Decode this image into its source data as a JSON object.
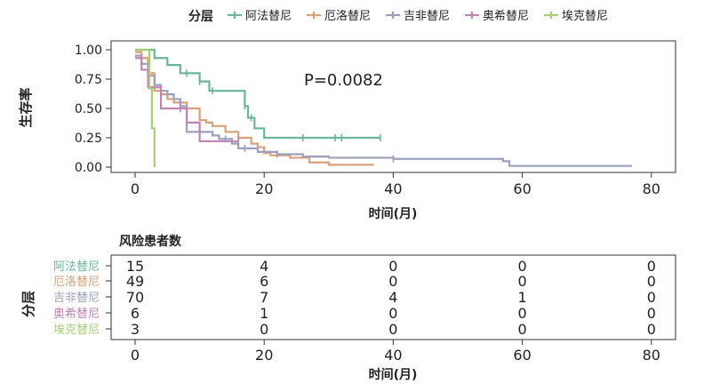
{
  "legend": {
    "title": "分层",
    "position": "top",
    "items": [
      {
        "name": "阿法替尼",
        "color": "#6BB59A"
      },
      {
        "name": "厄洛替尼",
        "color": "#D9A07B"
      },
      {
        "name": "吉非替尼",
        "color": "#9AA0BE"
      },
      {
        "name": "奥希替尼",
        "color": "#C184B4"
      },
      {
        "name": "埃克替尼",
        "color": "#A6CF7A"
      }
    ]
  },
  "chart_data": [
    {
      "type": "line",
      "subtype": "kaplan-meier",
      "xlabel": "时间(月)",
      "ylabel": "生存率",
      "xlim": [
        -3,
        80
      ],
      "ylim": [
        0,
        1
      ],
      "xticks": [
        0,
        20,
        40,
        60,
        80
      ],
      "yticks": [
        0.0,
        0.25,
        0.5,
        0.75,
        1.0
      ],
      "ytick_labels": [
        "0.00",
        "0.25",
        "0.50",
        "0.75",
        "1.00"
      ],
      "annotation": "P=0.0082",
      "grid": false,
      "series": [
        {
          "name": "阿法替尼",
          "color": "#6BB59A",
          "steps": [
            [
              0,
              1.0
            ],
            [
              3,
              0.93
            ],
            [
              5,
              0.87
            ],
            [
              7,
              0.8
            ],
            [
              10,
              0.73
            ],
            [
              11.5,
              0.65
            ],
            [
              17,
              0.52
            ],
            [
              17.5,
              0.42
            ],
            [
              18.5,
              0.33
            ],
            [
              20,
              0.25
            ],
            [
              38,
              0.25
            ]
          ],
          "censor": [
            8,
            10,
            12,
            17,
            18,
            26,
            31,
            32,
            38
          ]
        },
        {
          "name": "厄洛替尼",
          "color": "#D9A07B",
          "steps": [
            [
              0,
              0.98
            ],
            [
              1,
              0.93
            ],
            [
              2,
              0.8
            ],
            [
              3,
              0.65
            ],
            [
              4,
              0.62
            ],
            [
              5,
              0.58
            ],
            [
              6,
              0.55
            ],
            [
              8,
              0.5
            ],
            [
              10,
              0.4
            ],
            [
              11,
              0.38
            ],
            [
              12,
              0.35
            ],
            [
              14,
              0.3
            ],
            [
              16,
              0.25
            ],
            [
              18,
              0.2
            ],
            [
              19,
              0.17
            ],
            [
              20,
              0.12
            ],
            [
              21,
              0.1
            ],
            [
              24,
              0.08
            ],
            [
              27,
              0.04
            ],
            [
              30,
              0.02
            ],
            [
              37,
              0.02
            ]
          ],
          "censor": []
        },
        {
          "name": "吉非替尼",
          "color": "#9AA0BE",
          "steps": [
            [
              0,
              0.95
            ],
            [
              1,
              0.88
            ],
            [
              2,
              0.78
            ],
            [
              3,
              0.7
            ],
            [
              4,
              0.65
            ],
            [
              5,
              0.62
            ],
            [
              6,
              0.58
            ],
            [
              7,
              0.52
            ],
            [
              8,
              0.3
            ],
            [
              12,
              0.27
            ],
            [
              13,
              0.24
            ],
            [
              15,
              0.2
            ],
            [
              16,
              0.16
            ],
            [
              19,
              0.13
            ],
            [
              22,
              0.11
            ],
            [
              26,
              0.09
            ],
            [
              30,
              0.08
            ],
            [
              40,
              0.07
            ],
            [
              57,
              0.05
            ],
            [
              58,
              0.01
            ],
            [
              77,
              0.01
            ]
          ],
          "censor": [
            14,
            17,
            22,
            40
          ]
        },
        {
          "name": "奥希替尼",
          "color": "#C184B4",
          "steps": [
            [
              0,
              0.93
            ],
            [
              1,
              0.83
            ],
            [
              2,
              0.68
            ],
            [
              4,
              0.5
            ],
            [
              8,
              0.38
            ],
            [
              10,
              0.22
            ],
            [
              14,
              0.22
            ],
            [
              16,
              0.22
            ]
          ],
          "censor": [
            7,
            16
          ]
        },
        {
          "name": "埃克替尼",
          "color": "#A6CF7A",
          "steps": [
            [
              0,
              1.0
            ],
            [
              2,
              1.0
            ],
            [
              2.2,
              0.67
            ],
            [
              2.6,
              0.33
            ],
            [
              3,
              0.0
            ]
          ],
          "censor": []
        }
      ]
    },
    {
      "type": "table",
      "title": "风险患者数",
      "xlabel": "时间(月)",
      "ylabel": "分层",
      "xticks": [
        0,
        20,
        40,
        60,
        80
      ],
      "rows": [
        {
          "name": "阿法替尼",
          "values": [
            15,
            4,
            0,
            0,
            0
          ]
        },
        {
          "name": "厄洛替尼",
          "values": [
            49,
            6,
            0,
            0,
            0
          ]
        },
        {
          "name": "吉非替尼",
          "values": [
            70,
            7,
            4,
            1,
            0
          ]
        },
        {
          "name": "奥希替尼",
          "values": [
            6,
            1,
            0,
            0,
            0
          ]
        },
        {
          "name": "埃克替尼",
          "values": [
            3,
            0,
            0,
            0,
            0
          ]
        }
      ]
    }
  ]
}
